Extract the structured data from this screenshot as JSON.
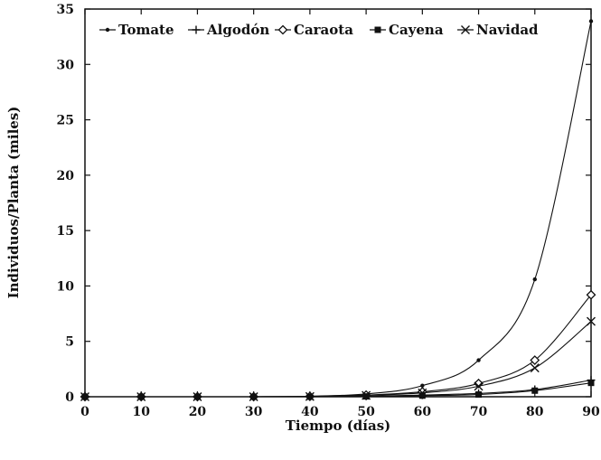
{
  "chart_data": {
    "type": "line",
    "title": "",
    "xlabel": "Tiempo (días)",
    "ylabel": "Individuos/Planta (miles)",
    "xlim": [
      0,
      90
    ],
    "ylim": [
      0,
      35
    ],
    "xticks": [
      0,
      10,
      20,
      30,
      40,
      50,
      60,
      70,
      80,
      90
    ],
    "yticks": [
      0,
      5,
      10,
      15,
      20,
      25,
      30,
      35
    ],
    "grid": false,
    "legend_position": "top",
    "x": [
      0,
      10,
      20,
      30,
      40,
      50,
      60,
      70,
      80,
      90
    ],
    "series": [
      {
        "name": "Tomate",
        "marker": "dot",
        "values": [
          0,
          0,
          0,
          0,
          0.05,
          0.25,
          1.0,
          3.3,
          10.6,
          33.9
        ]
      },
      {
        "name": "Algodón",
        "marker": "plus",
        "values": [
          0,
          0,
          0,
          0,
          0,
          0.05,
          0.15,
          0.3,
          0.65,
          1.5
        ]
      },
      {
        "name": "Caraota",
        "marker": "open-diamond",
        "values": [
          0,
          0,
          0,
          0,
          0.03,
          0.15,
          0.45,
          1.2,
          3.3,
          9.2
        ]
      },
      {
        "name": "Cayena",
        "marker": "filled-square",
        "values": [
          0,
          0,
          0,
          0,
          0,
          0.03,
          0.1,
          0.2,
          0.55,
          1.25
        ]
      },
      {
        "name": "Navidad",
        "marker": "x",
        "values": [
          0,
          0,
          0,
          0,
          0.02,
          0.12,
          0.35,
          0.95,
          2.6,
          6.8
        ]
      }
    ]
  }
}
